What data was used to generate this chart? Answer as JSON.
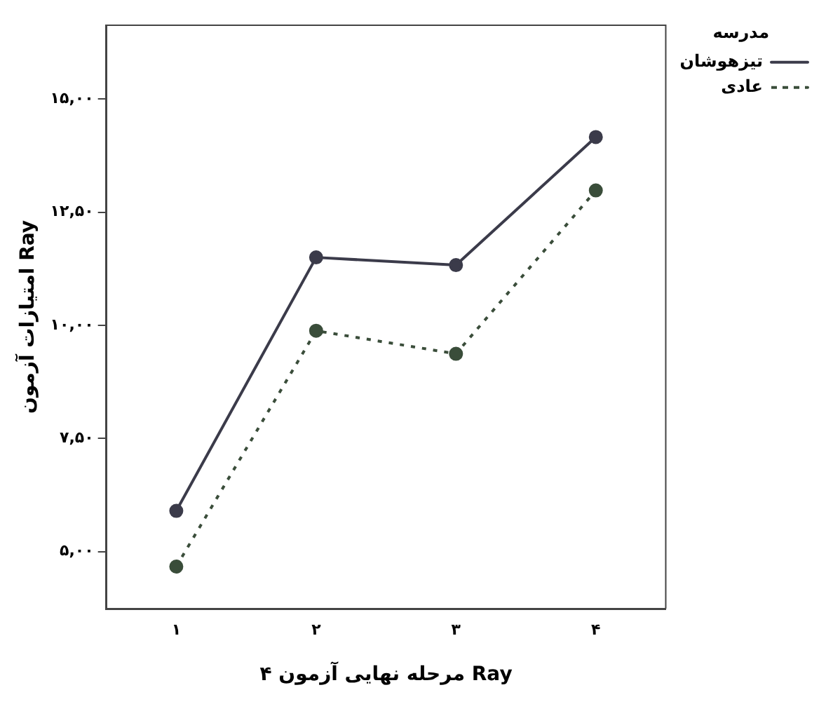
{
  "chart_data": {
    "type": "line",
    "xlabel": "۴ مرحله نهایی آزمون Ray",
    "ylabel": "امتیازات آزمون Ray",
    "legend_title": "مدرسه",
    "categories": [
      "۱",
      "۲",
      "۳",
      "۴"
    ],
    "series": [
      {
        "name": "تیزهوشان",
        "color": "#3b3b4a",
        "values": [
          5.9,
          11.5,
          11.33,
          14.16
        ],
        "line_style": "solid"
      },
      {
        "name": "عادی",
        "color": "#3a4d3a",
        "values": [
          4.67,
          9.88,
          9.37,
          12.98
        ],
        "line_style": "dotted"
      }
    ],
    "ylim": [
      3.74,
      16.63
    ],
    "yticks": [
      {
        "value": 5,
        "label": "۵,۰۰"
      },
      {
        "value": 7.5,
        "label": "۷,۵۰"
      },
      {
        "value": 10,
        "label": "۱۰,۰۰"
      },
      {
        "value": 12.5,
        "label": "۱۲,۵۰"
      },
      {
        "value": 15,
        "label": "۱۵,۰۰"
      }
    ],
    "grid": false,
    "legend": "top right",
    "marker": "circle"
  }
}
